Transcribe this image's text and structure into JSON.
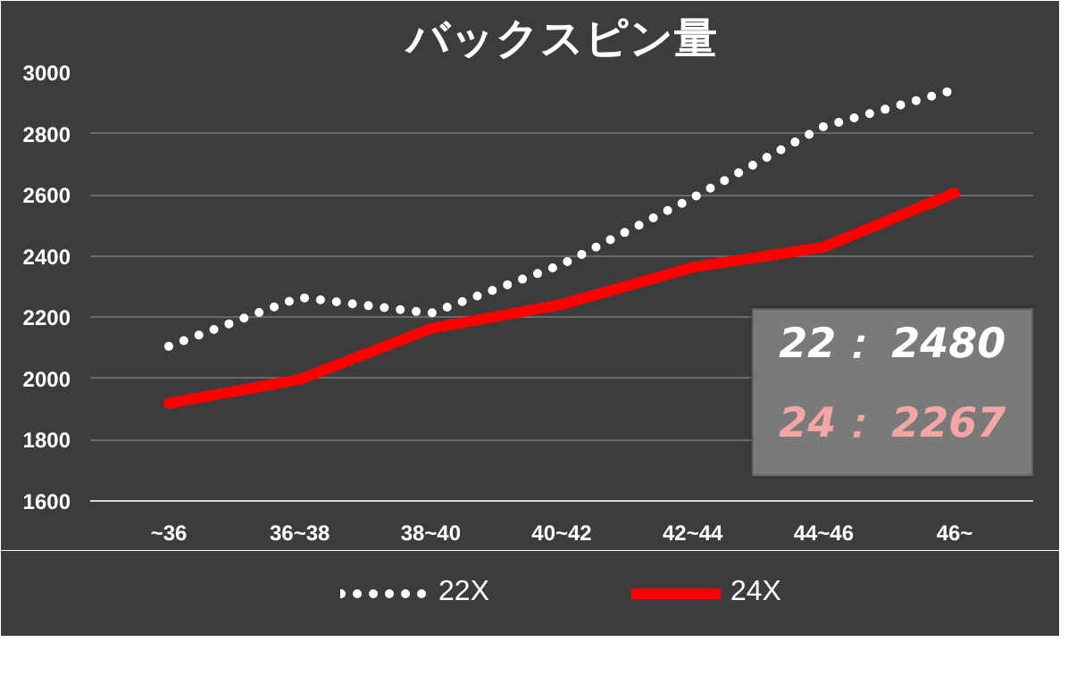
{
  "chart_data": {
    "type": "line",
    "title": "バックスピン量",
    "categories": [
      "~36",
      "36~38",
      "38~40",
      "40~42",
      "42~44",
      "44~46",
      "46~"
    ],
    "series": [
      {
        "name": "22X",
        "color": "#ffffff",
        "line_style": "dotted",
        "values": [
          2105,
          2265,
          2213,
          2372,
          2590,
          2823,
          2943
        ]
      },
      {
        "name": "24X",
        "color": "#ff0000",
        "line_style": "solid",
        "values": [
          1919,
          1997,
          2163,
          2242,
          2363,
          2429,
          2606
        ]
      }
    ],
    "ylim": [
      1600,
      3000
    ],
    "yticks": [
      1600,
      1800,
      2000,
      2200,
      2400,
      2600,
      2800,
      3000
    ],
    "grid": "y",
    "legend": "bottom",
    "annotations": [
      "22： 2480",
      "24： 2267"
    ]
  }
}
